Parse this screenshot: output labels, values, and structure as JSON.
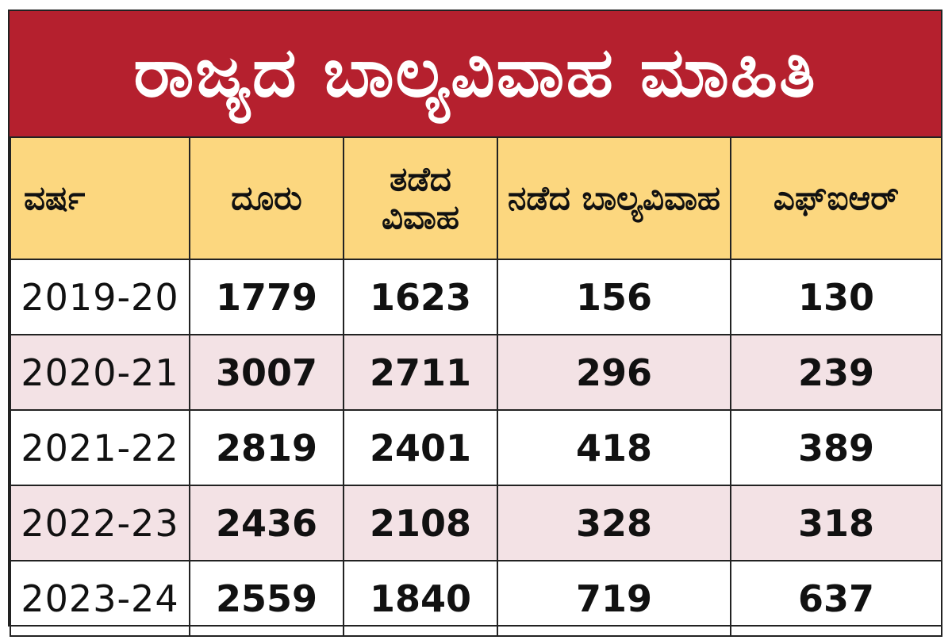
{
  "title": "ರಾಜ್ಯದ ಬಾಲ್ಯವಿವಾಹ ಮಾಹಿತಿ",
  "headers": [
    "ವರ್ಷ",
    "ದೂರು",
    "ತಡೆದ ವಿವಾಹ",
    "ನಡೆದ ಬಾಲ್ಯವಿವಾಹ",
    "ಎಫ್‌ಐಆರ್"
  ],
  "rows": [
    [
      "2019-20",
      "1779",
      "1623",
      "156",
      "130"
    ],
    [
      "2020-21",
      "3007",
      "2711",
      "296",
      "239"
    ],
    [
      "2021-22",
      "2819",
      "2401",
      "418",
      "389"
    ],
    [
      "2022-23",
      "2436",
      "2108",
      "328",
      "318"
    ],
    [
      "2023-24",
      "2559",
      "1840",
      "719",
      "637"
    ]
  ],
  "colors": {
    "title_bg": "#b5202e",
    "header_bg": "#fcd77f",
    "alt_row_bg": "#f3e2e5"
  },
  "chart_data": {
    "type": "table",
    "title": "ರಾಜ್ಯದ ಬಾಲ್ಯವಿವಾಹ ಮಾಹಿತಿ",
    "columns": [
      "ವರ್ಷ",
      "ದೂರು",
      "ತಡೆದ ವಿವಾಹ",
      "ನಡೆದ ಬಾಲ್ಯವಿವಾಹ",
      "ಎಫ್‌ಐಆರ್"
    ],
    "categories": [
      "2019-20",
      "2020-21",
      "2021-22",
      "2022-23",
      "2023-24"
    ],
    "series": [
      {
        "name": "ದೂರು",
        "values": [
          1779,
          3007,
          2819,
          2436,
          2559
        ]
      },
      {
        "name": "ತಡೆದ ವಿವಾಹ",
        "values": [
          1623,
          2711,
          2401,
          2108,
          1840
        ]
      },
      {
        "name": "ನಡೆದ ಬಾಲ್ಯವಿವಾಹ",
        "values": [
          156,
          296,
          418,
          328,
          719
        ]
      },
      {
        "name": "ಎಫ್‌ಐಆರ್",
        "values": [
          130,
          239,
          389,
          318,
          637
        ]
      }
    ]
  }
}
